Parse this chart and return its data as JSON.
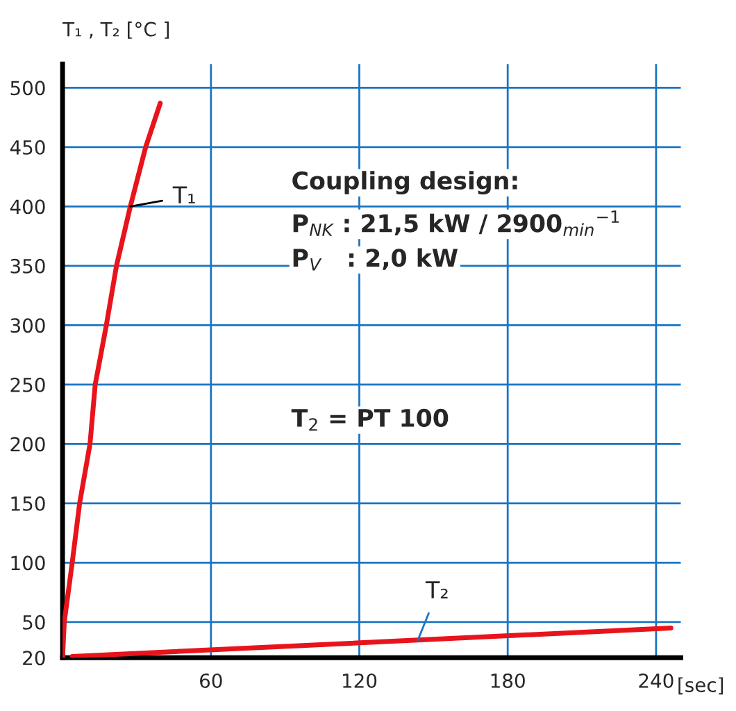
{
  "chart_data": {
    "type": "line",
    "ylabel": "T₁ , T₂ [°C ]",
    "xlabel": "[sec]",
    "xlim": [
      0,
      250
    ],
    "xticks": [
      60,
      120,
      180,
      240
    ],
    "ylim": [
      20,
      520
    ],
    "yticks": [
      20,
      50,
      100,
      150,
      200,
      250,
      300,
      350,
      400,
      450,
      500
    ],
    "grid": true,
    "line_style": "solid",
    "marker": "none",
    "series": [
      {
        "name": "T₁",
        "color": "#e8141c",
        "x": [
          0,
          0.7,
          3.9,
          6.9,
          11.1,
          13.2,
          17.7,
          21.8,
          27.4,
          33.6,
          39.5
        ],
        "values": [
          20,
          50,
          100,
          150,
          200,
          250,
          300,
          350,
          400,
          450,
          487
        ]
      },
      {
        "name": "T₂",
        "color": "#e8141c",
        "x": [
          3.9,
          246
        ],
        "values": [
          21,
          45
        ]
      }
    ],
    "annotations": [
      "Coupling design:",
      "P$_{NK}$ : 21,5 kW / 2900$_{min}$$^{−1}$",
      "P$_{V}$   : 2,0 kW",
      "T$_{2}$ = PT 100"
    ]
  }
}
